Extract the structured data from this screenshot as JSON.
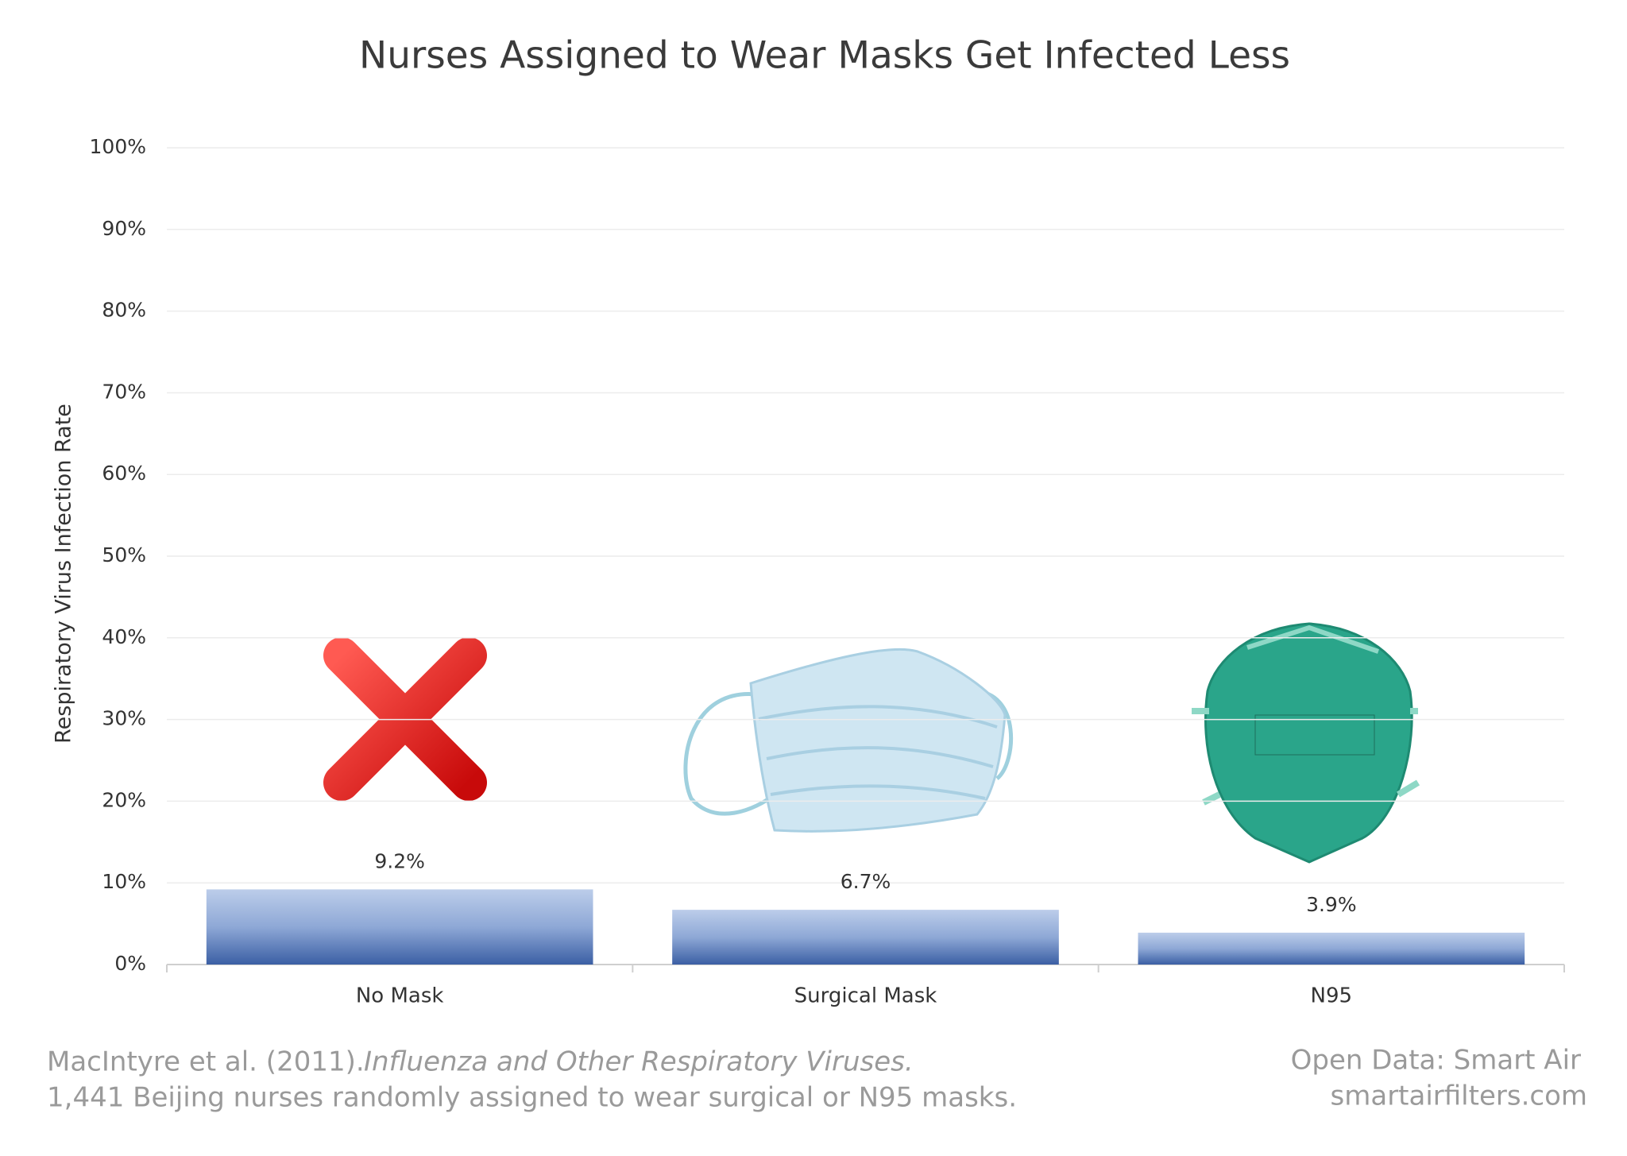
{
  "chart_data": {
    "type": "bar",
    "title": "Nurses Assigned to Wear Masks Get Infected Less",
    "y_label": "Respiratory Virus Infection Rate",
    "categories": [
      "No Mask",
      "Surgical Mask",
      "N95"
    ],
    "values": [
      9.2,
      6.7,
      3.9
    ],
    "value_labels": [
      "9.2%",
      "6.7%",
      "3.9%"
    ],
    "ylim": [
      0,
      100
    ],
    "yticks": [
      {
        "value": 0,
        "label": "0%"
      },
      {
        "value": 10,
        "label": "10%"
      },
      {
        "value": 20,
        "label": "20%"
      },
      {
        "value": 30,
        "label": "30%"
      },
      {
        "value": 40,
        "label": "40%"
      },
      {
        "value": 50,
        "label": "50%"
      },
      {
        "value": 60,
        "label": "60%"
      },
      {
        "value": 70,
        "label": "70%"
      },
      {
        "value": 80,
        "label": "80%"
      },
      {
        "value": 90,
        "label": "90%"
      },
      {
        "value": 100,
        "label": "100%"
      }
    ],
    "grid": true,
    "source_citation": "MacIntyre et al. (2011).",
    "source_journal": "Influenza and Other Respiratory Viruses.",
    "source_note": "1,441 Beijing nurses randomly assigned to wear surgical or N95 masks.",
    "credit": "Open Data: Smart Air",
    "credit_url": "smartairfilters.com"
  }
}
